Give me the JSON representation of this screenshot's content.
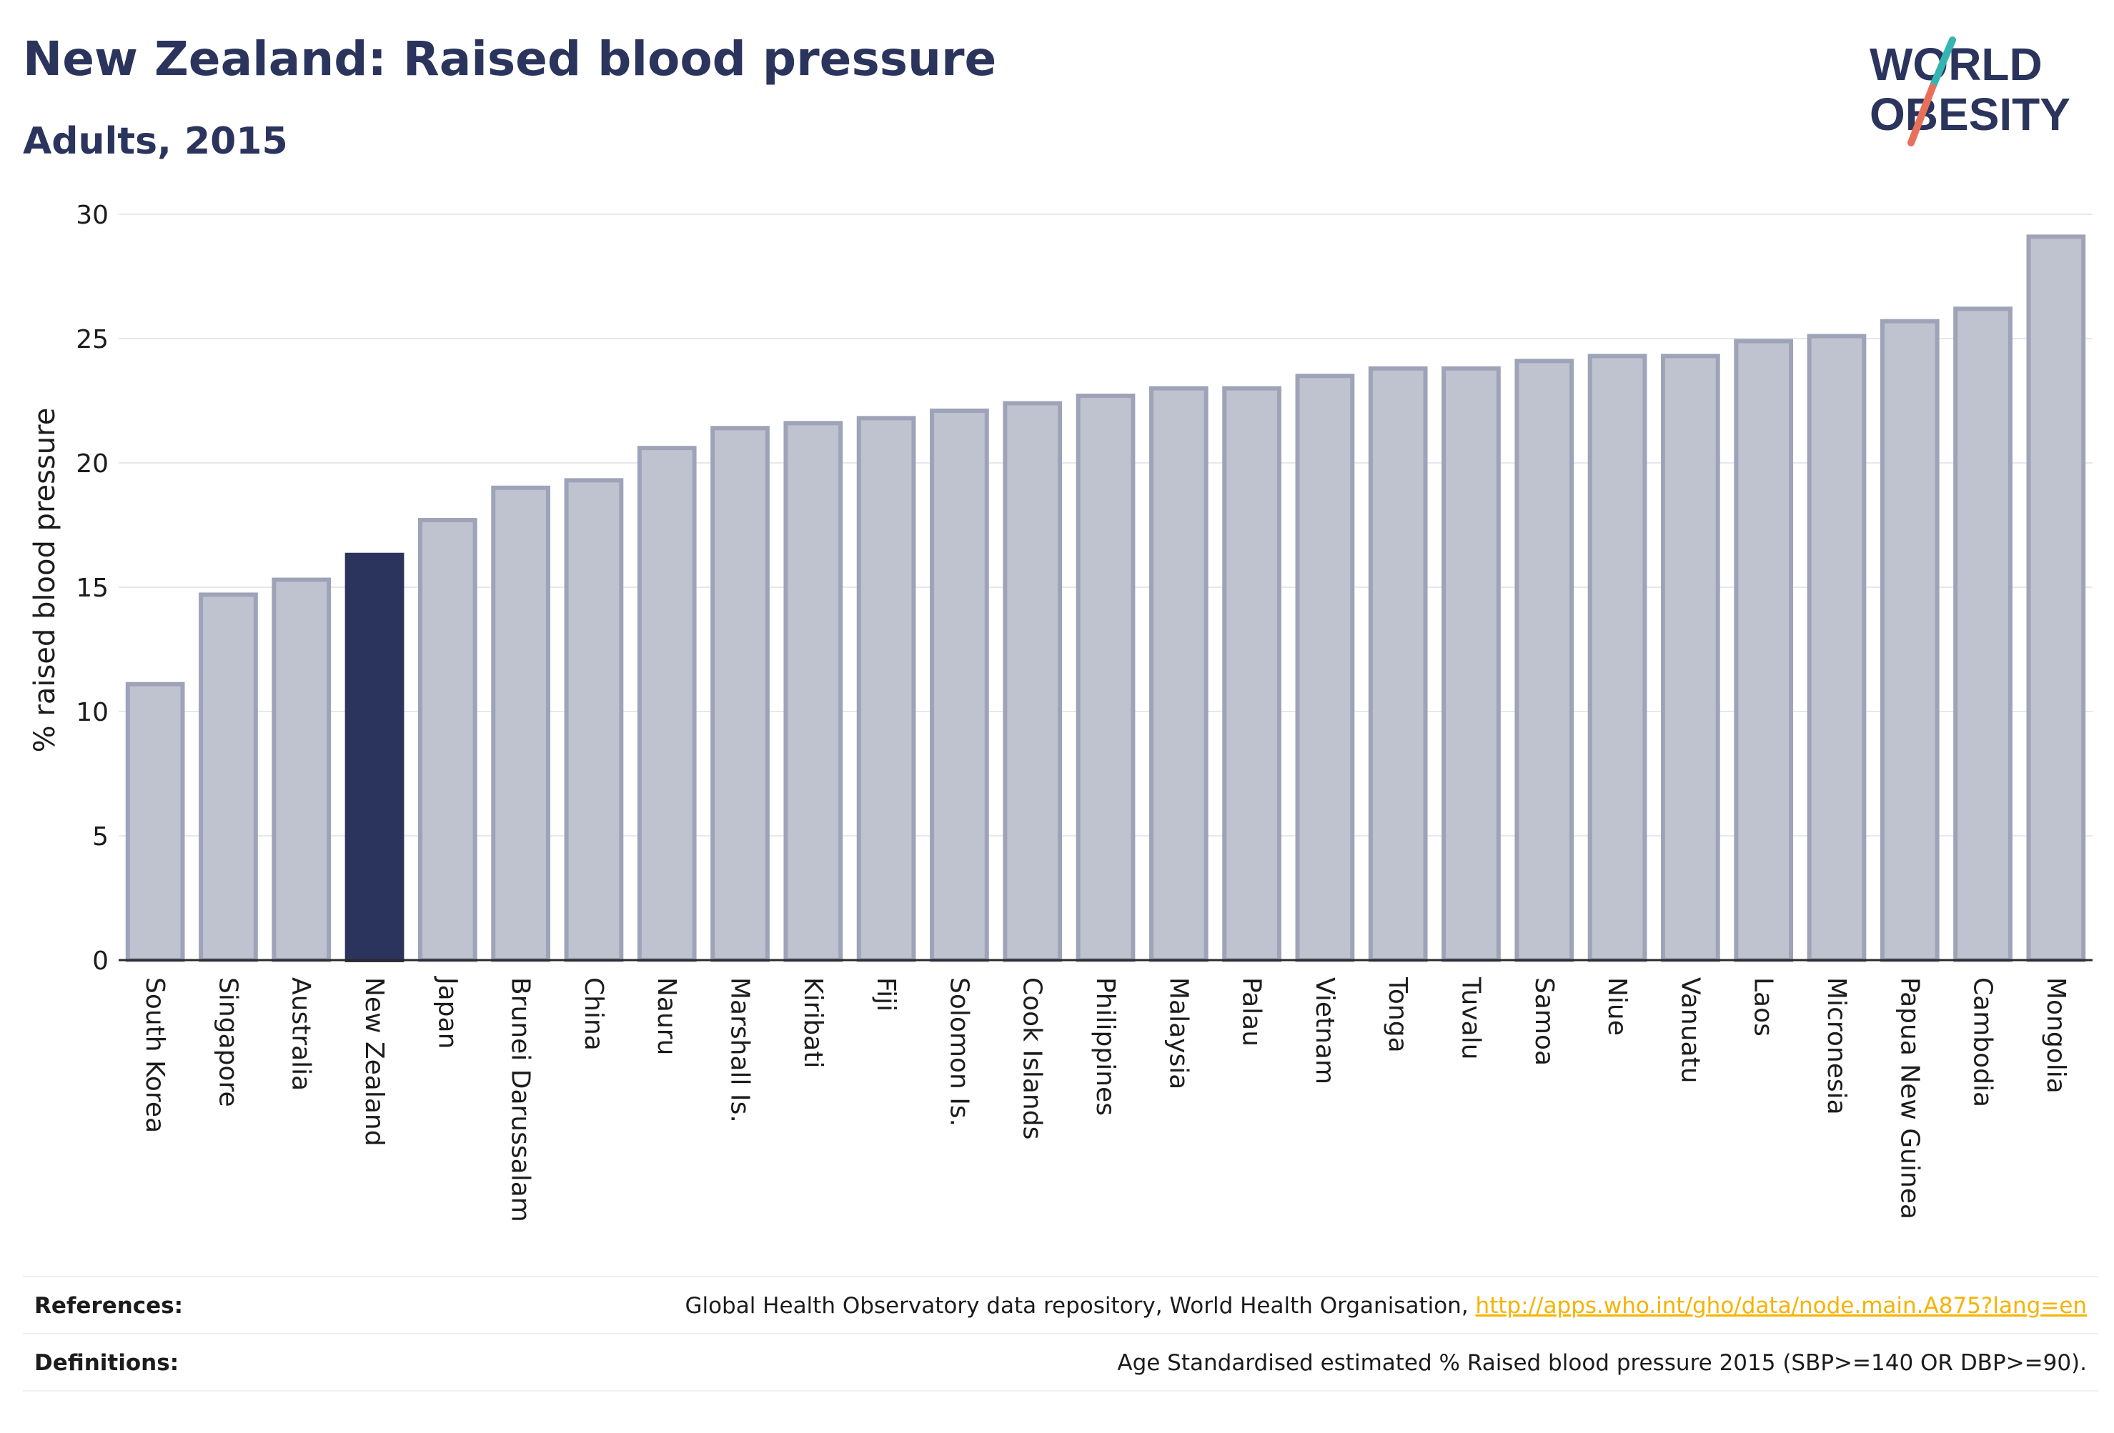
{
  "header": {
    "title": "New Zealand: Raised blood pressure",
    "subtitle": "Adults, 2015"
  },
  "logo": {
    "line1": "WORLD",
    "line2": "OBESITY"
  },
  "colors": {
    "highlight": "#2b345c",
    "bar_fill": "#bfc2cf",
    "bar_stroke": "#9ea3b8",
    "grid": "#e6e8ee",
    "axis": "#2b2b2b",
    "link": "#f5b301",
    "logo_text": "#2b345c",
    "logo_slash_teal": "#35b5b2",
    "logo_slash_coral": "#e8705a"
  },
  "chart_data": {
    "type": "bar",
    "ylabel": "% raised blood pressure",
    "xlabel": "",
    "ylim": [
      0,
      30
    ],
    "yticks": [
      0,
      5,
      10,
      15,
      20,
      25,
      30
    ],
    "grid": true,
    "highlight": "New Zealand",
    "categories": [
      "South Korea",
      "Singapore",
      "Australia",
      "New Zealand",
      "Japan",
      "Brunei Darussalam",
      "China",
      "Nauru",
      "Marshall Is.",
      "Kiribati",
      "Fiji",
      "Solomon Is.",
      "Cook Islands",
      "Philippines",
      "Malaysia",
      "Palau",
      "Vietnam",
      "Tonga",
      "Tuvalu",
      "Samoa",
      "Niue",
      "Vanuatu",
      "Laos",
      "Micronesia",
      "Papua New Guinea",
      "Cambodia",
      "Mongolia"
    ],
    "values": [
      11.1,
      14.7,
      15.3,
      16.3,
      17.7,
      19.0,
      19.3,
      20.6,
      21.4,
      21.6,
      21.8,
      22.1,
      22.4,
      22.7,
      23.0,
      23.0,
      23.5,
      23.8,
      23.8,
      24.1,
      24.3,
      24.3,
      24.9,
      25.1,
      25.7,
      26.2,
      29.1
    ]
  },
  "footer": {
    "references_label": "References:",
    "references_text": "Global Health Observatory data repository, World Health Organisation, ",
    "references_link": "http://apps.who.int/gho/data/node.main.A875?lang=en",
    "definitions_label": "Definitions:",
    "definitions_text": "Age Standardised estimated % Raised blood pressure 2015 (SBP>=140 OR DBP>=90)."
  }
}
